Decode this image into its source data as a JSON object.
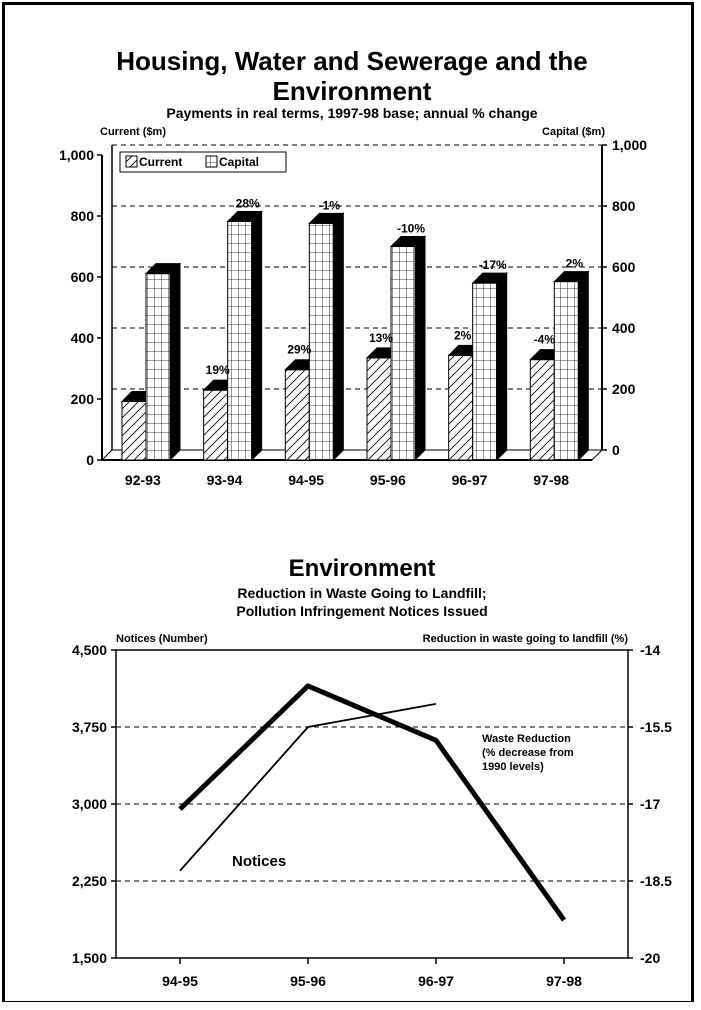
{
  "chart_data": [
    {
      "type": "bar",
      "title": "Housing, Water and Sewerage and the Environment",
      "subtitle": "Payments in real terms, 1997-98 base; annual % change",
      "y_left_label": "Current ($m)",
      "y_right_label": "Capital ($m)",
      "ylim": [
        0,
        1000
      ],
      "y_ticks": [
        "0",
        "200",
        "400",
        "600",
        "800",
        "1,000"
      ],
      "y_right_ticks": [
        "0",
        "200",
        "400",
        "600",
        "800",
        "1,000"
      ],
      "y_right_tick_values": [
        0,
        200,
        400,
        600,
        800,
        1000
      ],
      "categories": [
        "92-93",
        "93-94",
        "94-95",
        "95-96",
        "96-97",
        "97-98"
      ],
      "legend": {
        "placement": "top-left",
        "entries": [
          "Current",
          "Capital"
        ]
      },
      "grid": true,
      "series": [
        {
          "name": "Current",
          "values": [
            192,
            229,
            296,
            335,
            343,
            329
          ],
          "labels": [
            "",
            "19%",
            "29%",
            "13%",
            "2%",
            "-4%"
          ]
        },
        {
          "name": "Capital",
          "values": [
            611,
            782,
            776,
            700,
            580,
            585
          ],
          "labels": [
            "",
            "28%",
            "-1%",
            "-10%",
            "-17%",
            "2%"
          ]
        }
      ]
    },
    {
      "type": "line",
      "title": "Environment",
      "subtitle_lines": [
        "Reduction in Waste Going to Landfill;",
        "Pollution Infringement Notices Issued"
      ],
      "y_left_label": "Notices (Number)",
      "y_right_label": "Reduction in waste going to landfill (%)",
      "y_left_range": [
        1500,
        4500
      ],
      "y_left_ticks": [
        "1,500",
        "2,250",
        "3,000",
        "3,750",
        "4,500"
      ],
      "y_left_tick_values": [
        1500,
        2250,
        3000,
        3750,
        4500
      ],
      "y_right_range": [
        -20,
        -14
      ],
      "y_right_ticks": [
        "-20",
        "-18.5",
        "-17",
        "-15.5",
        "-14"
      ],
      "y_right_tick_values": [
        -20,
        -18.5,
        -17,
        -15.5,
        -14
      ],
      "categories": [
        "94-95",
        "95-96",
        "96-97",
        "97-98"
      ],
      "grid": true,
      "series": [
        {
          "name": "Notices",
          "axis": "left",
          "values": [
            2950,
            4150,
            3620,
            1870
          ]
        },
        {
          "name": "Waste Reduction",
          "axis": "right",
          "values": [
            -18.3,
            -15.5,
            -15.05,
            null
          ]
        }
      ],
      "annotations": {
        "notices": "Notices",
        "waste": [
          "Waste Reduction",
          "(% decrease from",
          "1990 levels)"
        ]
      }
    }
  ]
}
